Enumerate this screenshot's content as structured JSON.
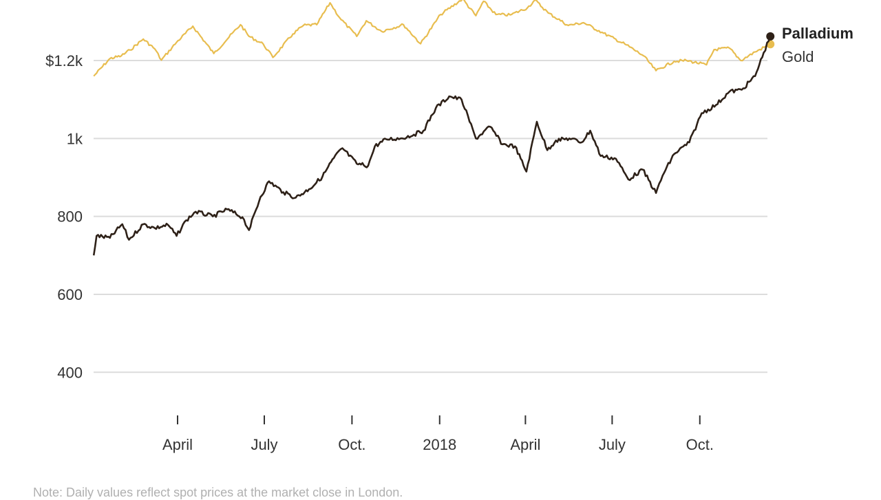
{
  "chart_data": {
    "type": "line",
    "title": "",
    "xlabel": "",
    "ylabel": "",
    "ylim": [
      300,
      1330
    ],
    "x_range": [
      "2017-01-03",
      "2018-12-14"
    ],
    "y_ticks": [
      {
        "value": 400,
        "label": "400"
      },
      {
        "value": 600,
        "label": "600"
      },
      {
        "value": 800,
        "label": "800"
      },
      {
        "value": 1000,
        "label": "1k"
      },
      {
        "value": 1200,
        "label": "$1.2k"
      }
    ],
    "x_ticks": [
      {
        "date": "2017-04-01",
        "label": "April"
      },
      {
        "date": "2017-07-01",
        "label": "July"
      },
      {
        "date": "2017-10-01",
        "label": "Oct."
      },
      {
        "date": "2018-01-01",
        "label": "2018"
      },
      {
        "date": "2018-04-01",
        "label": "April"
      },
      {
        "date": "2018-07-01",
        "label": "July"
      },
      {
        "date": "2018-10-01",
        "label": "Oct."
      }
    ],
    "grid": true,
    "series": [
      {
        "name": "Gold",
        "color": "#e8bd4f",
        "points": [
          [
            "2017-01-03",
            1160
          ],
          [
            "2017-01-20",
            1205
          ],
          [
            "2017-02-01",
            1212
          ],
          [
            "2017-02-10",
            1227
          ],
          [
            "2017-02-24",
            1255
          ],
          [
            "2017-03-08",
            1230
          ],
          [
            "2017-03-15",
            1201
          ],
          [
            "2017-03-31",
            1247
          ],
          [
            "2017-04-17",
            1288
          ],
          [
            "2017-05-09",
            1218
          ],
          [
            "2017-05-25",
            1260
          ],
          [
            "2017-06-06",
            1292
          ],
          [
            "2017-06-15",
            1262
          ],
          [
            "2017-06-30",
            1242
          ],
          [
            "2017-07-10",
            1208
          ],
          [
            "2017-07-31",
            1268
          ],
          [
            "2017-08-11",
            1290
          ],
          [
            "2017-08-25",
            1292
          ],
          [
            "2017-09-08",
            1348
          ],
          [
            "2017-09-18",
            1310
          ],
          [
            "2017-10-06",
            1262
          ],
          [
            "2017-10-16",
            1302
          ],
          [
            "2017-11-01",
            1275
          ],
          [
            "2017-11-24",
            1292
          ],
          [
            "2017-12-12",
            1243
          ],
          [
            "2018-01-02",
            1318
          ],
          [
            "2018-01-25",
            1358
          ],
          [
            "2018-02-08",
            1315
          ],
          [
            "2018-02-16",
            1352
          ],
          [
            "2018-03-01",
            1318
          ],
          [
            "2018-03-16",
            1317
          ],
          [
            "2018-04-03",
            1335
          ],
          [
            "2018-04-11",
            1355
          ],
          [
            "2018-04-25",
            1322
          ],
          [
            "2018-05-16",
            1290
          ],
          [
            "2018-06-01",
            1297
          ],
          [
            "2018-06-22",
            1270
          ],
          [
            "2018-07-16",
            1240
          ],
          [
            "2018-08-03",
            1212
          ],
          [
            "2018-08-16",
            1174
          ],
          [
            "2018-09-04",
            1198
          ],
          [
            "2018-09-17",
            1200
          ],
          [
            "2018-10-08",
            1189
          ],
          [
            "2018-10-16",
            1228
          ],
          [
            "2018-11-01",
            1232
          ],
          [
            "2018-11-13",
            1200
          ],
          [
            "2018-11-28",
            1222
          ],
          [
            "2018-12-14",
            1242
          ]
        ]
      },
      {
        "name": "Palladium",
        "color": "#2e2118",
        "points": [
          [
            "2017-01-03",
            700
          ],
          [
            "2017-01-06",
            750
          ],
          [
            "2017-01-20",
            745
          ],
          [
            "2017-02-02",
            780
          ],
          [
            "2017-02-09",
            740
          ],
          [
            "2017-02-24",
            780
          ],
          [
            "2017-03-08",
            770
          ],
          [
            "2017-03-22",
            778
          ],
          [
            "2017-03-31",
            750
          ],
          [
            "2017-04-10",
            790
          ],
          [
            "2017-04-20",
            812
          ],
          [
            "2017-05-08",
            800
          ],
          [
            "2017-05-23",
            818
          ],
          [
            "2017-06-08",
            798
          ],
          [
            "2017-06-15",
            765
          ],
          [
            "2017-06-27",
            850
          ],
          [
            "2017-07-06",
            890
          ],
          [
            "2017-07-21",
            862
          ],
          [
            "2017-08-03",
            848
          ],
          [
            "2017-08-17",
            870
          ],
          [
            "2017-08-31",
            902
          ],
          [
            "2017-09-12",
            950
          ],
          [
            "2017-09-21",
            975
          ],
          [
            "2017-10-06",
            935
          ],
          [
            "2017-10-18",
            930
          ],
          [
            "2017-10-25",
            980
          ],
          [
            "2017-11-06",
            998
          ],
          [
            "2017-11-21",
            1000
          ],
          [
            "2017-12-05",
            1010
          ],
          [
            "2017-12-15",
            1020
          ],
          [
            "2017-12-28",
            1078
          ],
          [
            "2018-01-11",
            1108
          ],
          [
            "2018-01-24",
            1100
          ],
          [
            "2018-02-08",
            1000
          ],
          [
            "2018-02-23",
            1030
          ],
          [
            "2018-03-08",
            985
          ],
          [
            "2018-03-21",
            980
          ],
          [
            "2018-04-02",
            915
          ],
          [
            "2018-04-13",
            1043
          ],
          [
            "2018-04-24",
            970
          ],
          [
            "2018-05-03",
            995
          ],
          [
            "2018-05-17",
            1000
          ],
          [
            "2018-05-30",
            990
          ],
          [
            "2018-06-08",
            1020
          ],
          [
            "2018-06-19",
            955
          ],
          [
            "2018-07-05",
            948
          ],
          [
            "2018-07-18",
            895
          ],
          [
            "2018-08-02",
            920
          ],
          [
            "2018-08-16",
            860
          ],
          [
            "2018-08-23",
            905
          ],
          [
            "2018-09-04",
            960
          ],
          [
            "2018-09-20",
            990
          ],
          [
            "2018-10-03",
            1065
          ],
          [
            "2018-10-18",
            1086
          ],
          [
            "2018-11-01",
            1120
          ],
          [
            "2018-11-14",
            1125
          ],
          [
            "2018-11-28",
            1160
          ],
          [
            "2018-12-07",
            1220
          ],
          [
            "2018-12-14",
            1262
          ]
        ]
      }
    ],
    "labels": [
      {
        "series": "Palladium",
        "text": "Palladium"
      },
      {
        "series": "Gold",
        "text": "Gold"
      }
    ]
  },
  "note": "Note: Daily values reflect spot prices at the market close in London."
}
